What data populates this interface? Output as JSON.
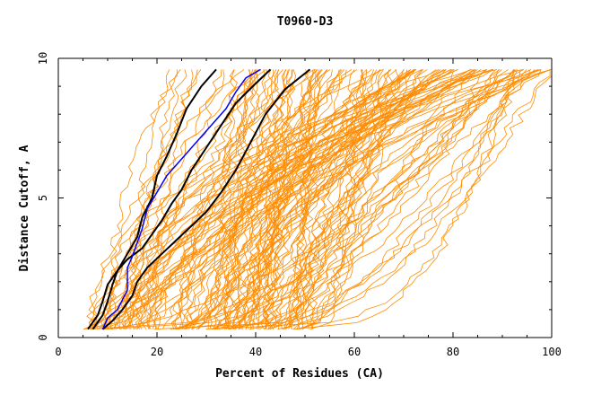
{
  "chart_data": {
    "type": "line",
    "title": "T0960-D3",
    "xlabel": "Percent of Residues (CA)",
    "ylabel": "Distance Cutoff, A",
    "xlim": [
      0,
      100
    ],
    "ylim": [
      0,
      10
    ],
    "xticks": [
      0,
      20,
      40,
      60,
      80,
      100
    ],
    "yticks": [
      0,
      5,
      10
    ],
    "grid": false,
    "legend": "none",
    "colors": {
      "background_series": "#ff8c00",
      "highlight_black": "#000000",
      "highlight_blue": "#0000ff",
      "axis": "#000000"
    },
    "background_series": {
      "count": 150,
      "y_start": 0.3,
      "y_end": 9.6,
      "x_at_y_start_range": [
        5,
        52
      ],
      "x_at_y_end_range": [
        16,
        100
      ]
    },
    "highlighted_series": [
      {
        "color": "#000000",
        "points": [
          [
            6,
            0.3
          ],
          [
            8,
            0.8
          ],
          [
            9,
            1.3
          ],
          [
            10,
            1.9
          ],
          [
            12,
            2.4
          ],
          [
            14,
            2.8
          ],
          [
            17,
            3.2
          ],
          [
            19,
            3.7
          ],
          [
            21,
            4.2
          ],
          [
            23,
            4.8
          ],
          [
            25,
            5.3
          ],
          [
            27,
            6.0
          ],
          [
            30,
            6.8
          ],
          [
            33,
            7.6
          ],
          [
            36,
            8.4
          ],
          [
            40,
            9.1
          ],
          [
            43,
            9.6
          ]
        ]
      },
      {
        "color": "#000000",
        "points": [
          [
            7,
            0.3
          ],
          [
            9,
            0.8
          ],
          [
            10,
            1.3
          ],
          [
            11,
            1.9
          ],
          [
            12,
            2.4
          ],
          [
            14,
            3.0
          ],
          [
            16,
            3.6
          ],
          [
            17,
            4.3
          ],
          [
            19,
            5.0
          ],
          [
            20,
            5.8
          ],
          [
            22,
            6.5
          ],
          [
            24,
            7.3
          ],
          [
            26,
            8.2
          ],
          [
            29,
            9.0
          ],
          [
            32,
            9.6
          ]
        ]
      },
      {
        "color": "#000000",
        "points": [
          [
            9,
            0.3
          ],
          [
            11,
            0.6
          ],
          [
            13,
            1.0
          ],
          [
            15,
            1.5
          ],
          [
            16,
            2.0
          ],
          [
            18,
            2.5
          ],
          [
            21,
            3.0
          ],
          [
            24,
            3.5
          ],
          [
            27,
            4.0
          ],
          [
            30,
            4.5
          ],
          [
            33,
            5.2
          ],
          [
            36,
            6.0
          ],
          [
            39,
            7.0
          ],
          [
            42,
            8.0
          ],
          [
            46,
            8.9
          ],
          [
            51,
            9.6
          ]
        ]
      },
      {
        "color": "#0000ff",
        "points": [
          [
            9,
            0.3
          ],
          [
            10,
            0.7
          ],
          [
            12,
            1.0
          ],
          [
            14,
            1.7
          ],
          [
            14,
            2.5
          ],
          [
            15,
            2.9
          ],
          [
            16,
            3.4
          ],
          [
            17,
            3.9
          ],
          [
            18,
            4.6
          ],
          [
            20,
            5.2
          ],
          [
            22,
            5.8
          ],
          [
            25,
            6.4
          ],
          [
            28,
            7.0
          ],
          [
            31,
            7.6
          ],
          [
            34,
            8.2
          ],
          [
            36,
            8.8
          ],
          [
            38,
            9.3
          ],
          [
            41,
            9.6
          ]
        ]
      }
    ]
  }
}
